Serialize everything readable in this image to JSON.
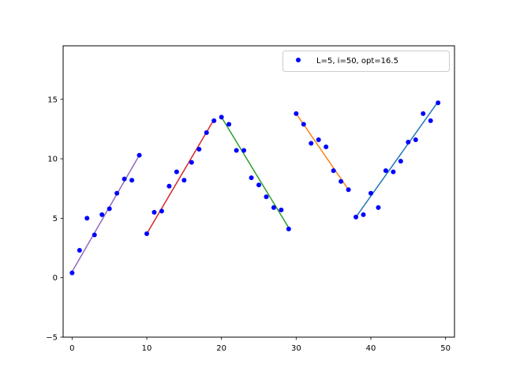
{
  "chart_data": {
    "type": "scatter",
    "title": "",
    "xlabel": "",
    "ylabel": "",
    "xlim": [
      -1.2,
      51.2
    ],
    "ylim": [
      -5,
      19.5
    ],
    "xticks": [
      0,
      10,
      20,
      30,
      40,
      50
    ],
    "yticks": [
      -5,
      0,
      5,
      10,
      15
    ],
    "grid": false,
    "legend": {
      "label": "L=5, i=50, opt=16.5",
      "location": "upper right"
    },
    "points": {
      "color": "#0000ff",
      "x": [
        0,
        1,
        2,
        3,
        4,
        5,
        6,
        7,
        8,
        9,
        10,
        11,
        12,
        13,
        14,
        15,
        16,
        17,
        18,
        19,
        20,
        21,
        22,
        23,
        24,
        25,
        26,
        27,
        28,
        29,
        30,
        31,
        32,
        33,
        34,
        35,
        36,
        37,
        38,
        39,
        40,
        41,
        42,
        43,
        44,
        45,
        46,
        47,
        48,
        49
      ],
      "y": [
        0.4,
        2.3,
        5.0,
        3.6,
        5.3,
        5.8,
        7.1,
        8.3,
        8.2,
        10.3,
        3.7,
        5.5,
        5.6,
        7.7,
        8.9,
        8.2,
        9.7,
        10.8,
        12.2,
        13.2,
        13.5,
        12.9,
        10.7,
        10.7,
        8.4,
        7.8,
        6.8,
        5.9,
        5.7,
        4.1,
        13.8,
        12.9,
        11.3,
        11.6,
        11.0,
        9.0,
        8.1,
        7.4,
        5.1,
        5.3,
        7.1,
        5.9,
        9.0,
        8.9,
        9.8,
        11.4,
        11.6,
        13.8,
        13.2,
        14.7
      ]
    },
    "segments": [
      {
        "color": "#9467bd",
        "x": [
          0,
          9
        ],
        "y": [
          0.5,
          10.3
        ]
      },
      {
        "color": "#d62728",
        "x": [
          10,
          19
        ],
        "y": [
          3.7,
          13.3
        ]
      },
      {
        "color": "#2ca02c",
        "x": [
          20,
          29
        ],
        "y": [
          13.5,
          4.2
        ]
      },
      {
        "color": "#ff7f0e",
        "x": [
          30,
          37
        ],
        "y": [
          13.8,
          7.4
        ]
      },
      {
        "color": "#1f77b4",
        "x": [
          38,
          49
        ],
        "y": [
          5.1,
          14.8
        ]
      }
    ]
  }
}
